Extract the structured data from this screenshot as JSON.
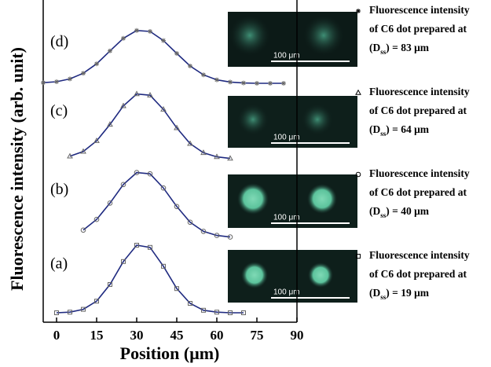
{
  "chart_data": {
    "type": "line",
    "x_label": "Position (μm)",
    "y_label": "Fluorescence intensity (arb. unit)",
    "xlim": [
      -5,
      90
    ],
    "xticks": [
      0,
      15,
      30,
      45,
      60,
      75,
      90
    ],
    "ylim": [
      0,
      10
    ],
    "inset_scale_labels": [
      "100 μm",
      "100 μm",
      "100 μm",
      "100 μm"
    ],
    "series": [
      {
        "label": "(a)",
        "marker": "square",
        "color": "#1f2a80",
        "marker_color": "#666666",
        "name": [
          "Fluorescence intensity",
          "of C6 dot prepared at",
          "(D",
          "ss",
          ") = 19 μm"
        ],
        "x": [
          0,
          5,
          10,
          15,
          20,
          25,
          30,
          35,
          40,
          45,
          50,
          55,
          60,
          65,
          70
        ],
        "values": [
          0.3,
          0.32,
          0.41,
          0.67,
          1.2,
          1.93,
          2.45,
          2.38,
          1.78,
          1.07,
          0.6,
          0.38,
          0.32,
          0.3,
          0.3
        ]
      },
      {
        "label": "(b)",
        "marker": "circle",
        "color": "#1f2a80",
        "marker_color": "#666666",
        "name": [
          "Fluorescence intensity",
          "of C6 dot prepared at",
          "(D",
          "ss",
          ") = 40 μm"
        ],
        "x": [
          10,
          15,
          20,
          25,
          30,
          35,
          40,
          45,
          50,
          55,
          60,
          65
        ],
        "values": [
          2.93,
          3.27,
          3.79,
          4.38,
          4.76,
          4.72,
          4.27,
          3.68,
          3.18,
          2.89,
          2.76,
          2.71
        ]
      },
      {
        "label": "(c)",
        "marker": "triangle",
        "color": "#1f2a80",
        "marker_color": "#666666",
        "name": [
          "Fluorescence intensity",
          "of C6 dot prepared at",
          "(D",
          "ss",
          ") = 64 μm"
        ],
        "x": [
          5,
          10,
          15,
          20,
          25,
          30,
          35,
          40,
          45,
          50,
          55,
          60,
          65
        ],
        "values": [
          5.28,
          5.43,
          5.77,
          6.29,
          6.88,
          7.26,
          7.22,
          6.77,
          6.18,
          5.68,
          5.39,
          5.26,
          5.21
        ]
      },
      {
        "label": "(d)",
        "marker": "star",
        "color": "#1f2a80",
        "marker_color": "#666666",
        "name": [
          "Fluorescence intensity",
          "of C6 dot prepared at",
          "(D",
          "ss",
          ") = 83 μm"
        ],
        "x": [
          -5,
          0,
          5,
          10,
          15,
          20,
          25,
          30,
          35,
          40,
          45,
          50,
          55,
          60,
          65,
          70,
          75,
          80,
          85
        ],
        "values": [
          7.62,
          7.65,
          7.74,
          7.92,
          8.22,
          8.63,
          9.03,
          9.28,
          9.25,
          8.96,
          8.55,
          8.15,
          7.87,
          7.71,
          7.64,
          7.61,
          7.6,
          7.6,
          7.6
        ]
      }
    ]
  }
}
